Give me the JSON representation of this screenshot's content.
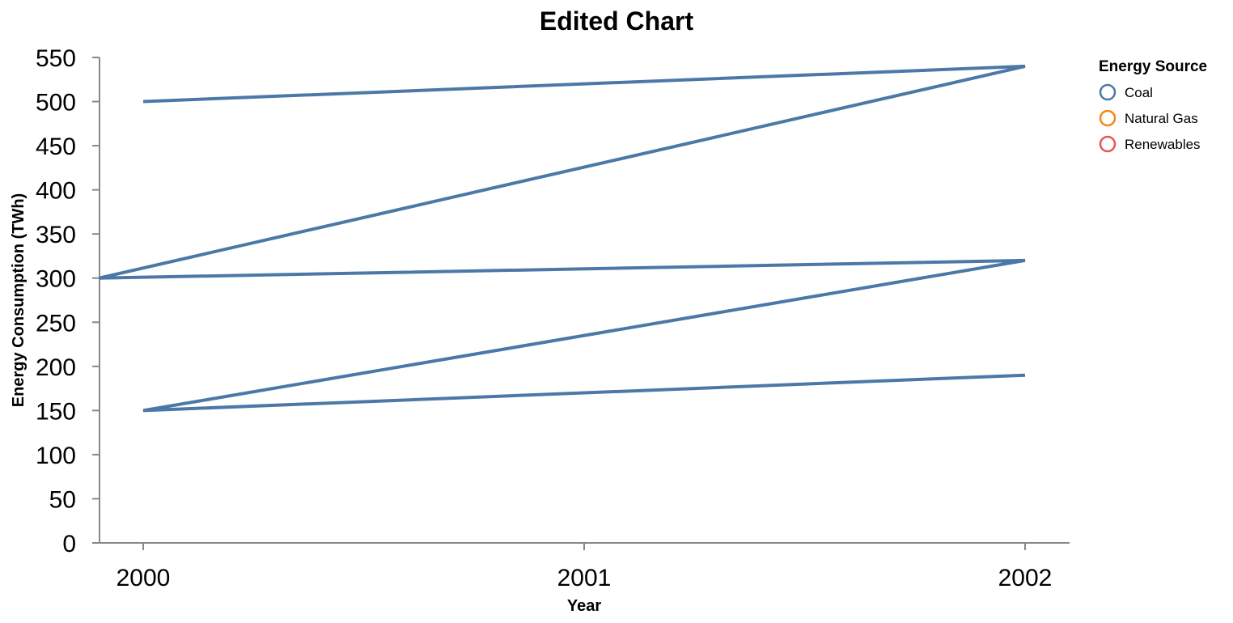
{
  "chart_data": {
    "type": "line",
    "title": "Edited Chart",
    "xlabel": "Year",
    "ylabel": "Energy Consumption (TWh)",
    "x_ticks": [
      "2000",
      "2001",
      "2002"
    ],
    "y_ticks": [
      "0",
      "50",
      "100",
      "150",
      "200",
      "250",
      "300",
      "350",
      "400",
      "450",
      "500",
      "550"
    ],
    "xlim": [
      2000,
      2002
    ],
    "ylim": [
      0,
      550
    ],
    "grid": false,
    "legend": {
      "title": "Energy Source",
      "placement": "top-right",
      "entries": [
        {
          "label": "Coal",
          "color": "#4c78a8"
        },
        {
          "label": "Natural Gas",
          "color": "#f58518"
        },
        {
          "label": "Renewables",
          "color": "#e45756"
        }
      ]
    },
    "series": [
      {
        "name": "Coal",
        "color": "#4c78a8",
        "points": [
          {
            "x": 2000,
            "y": 500
          },
          {
            "x": 2002,
            "y": 540
          },
          {
            "x": 1999.9,
            "y": 300
          },
          {
            "x": 2002,
            "y": 320
          },
          {
            "x": 2000,
            "y": 150
          },
          {
            "x": 2002,
            "y": 190
          }
        ]
      }
    ]
  }
}
